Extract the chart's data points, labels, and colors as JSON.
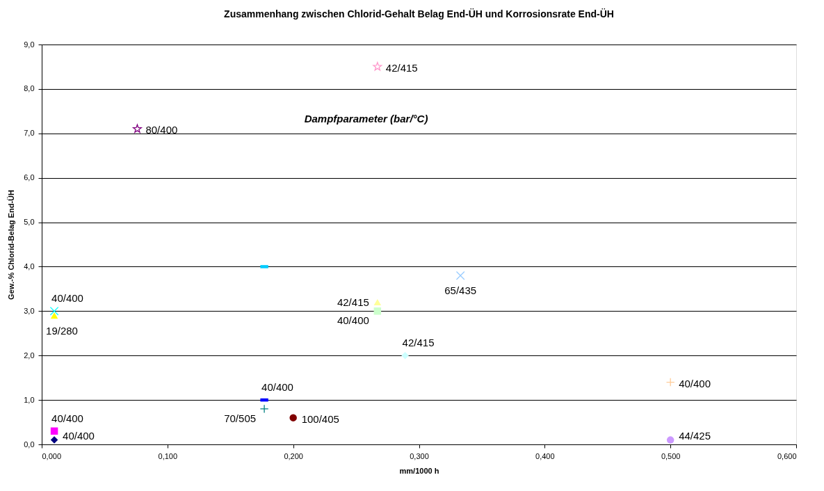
{
  "chart_data": {
    "type": "scatter",
    "title": "Zusammenhang zwischen Chlorid-Gehalt Belag End-ÜH und Korrosionsrate End-ÜH",
    "xlabel": "mm/1000 h",
    "ylabel": "Gew.-% Chlorid-Belag End-ÜH",
    "annotations": [
      "Dampfparameter (bar/°C)"
    ],
    "xlim": [
      0,
      0.6
    ],
    "ylim": [
      0,
      9
    ],
    "grid": "y",
    "xticks": [
      {
        "value": 0,
        "label": "0,000"
      },
      {
        "value": 0.1,
        "label": "0,100"
      },
      {
        "value": 0.2,
        "label": "0,200"
      },
      {
        "value": 0.3,
        "label": "0,300"
      },
      {
        "value": 0.4,
        "label": "0,400"
      },
      {
        "value": 0.5,
        "label": "0,500"
      },
      {
        "value": 0.6,
        "label": "0,600"
      }
    ],
    "yticks": [
      {
        "value": 0,
        "label": "0,0"
      },
      {
        "value": 1,
        "label": "1,0"
      },
      {
        "value": 2,
        "label": "2,0"
      },
      {
        "value": 3,
        "label": "3,0"
      },
      {
        "value": 4,
        "label": "4,0"
      },
      {
        "value": 5,
        "label": "5,0"
      },
      {
        "value": 6,
        "label": "6,0"
      },
      {
        "value": 7,
        "label": "7,0"
      },
      {
        "value": 8,
        "label": "8,0"
      },
      {
        "value": 9,
        "label": "9,0"
      }
    ],
    "series": [
      {
        "name": "40/400",
        "color": "#000080",
        "marker": "diamond",
        "x": [
          0.01
        ],
        "values": [
          0.1
        ]
      },
      {
        "name": "40/400",
        "color": "#ff00ff",
        "marker": "square",
        "x": [
          0.01
        ],
        "values": [
          0.3
        ]
      },
      {
        "name": "19/280",
        "color": "#ffff00",
        "marker": "triangle",
        "x": [
          0.01
        ],
        "values": [
          2.9
        ]
      },
      {
        "name": "40/400",
        "color": "#00ffff",
        "marker": "cross",
        "x": [
          0.01
        ],
        "values": [
          3.0
        ]
      },
      {
        "name": "80/400",
        "color": "#800080",
        "marker": "star",
        "x": [
          0.076
        ],
        "values": [
          7.1
        ]
      },
      {
        "color": "#00ccff",
        "x": [
          0.177
        ],
        "values": [
          4.0
        ]
      },
      {
        "name": "40/400",
        "color": "#0000ff",
        "x": [
          0.177
        ],
        "values": [
          1.0
        ]
      },
      {
        "name": "70/505",
        "color": "#008080",
        "marker": "plus",
        "x": [
          0.177
        ],
        "values": [
          0.8
        ]
      },
      {
        "name": "100/405",
        "color": "#800000",
        "marker": "circle",
        "x": [
          0.2
        ],
        "values": [
          0.6
        ]
      },
      {
        "name": "42/415",
        "color": "#ff99cc",
        "marker": "star",
        "x": [
          0.267
        ],
        "values": [
          8.5
        ]
      },
      {
        "name": "42/415",
        "color": "#ffff99",
        "marker": "triangle",
        "x": [
          0.267
        ],
        "values": [
          3.2
        ]
      },
      {
        "name": "40/400",
        "color": "#ccffcc",
        "marker": "square",
        "x": [
          0.267
        ],
        "values": [
          3.0
        ]
      },
      {
        "name": "42/415",
        "color": "#ccffff",
        "marker": "diamond",
        "x": [
          0.289
        ],
        "values": [
          2.0
        ]
      },
      {
        "name": "65/435",
        "color": "#99ccff",
        "marker": "cross",
        "x": [
          0.333
        ],
        "values": [
          3.8
        ]
      },
      {
        "name": "40/400",
        "color": "#ffcc99",
        "marker": "plus",
        "x": [
          0.5
        ],
        "values": [
          1.4
        ]
      },
      {
        "name": "44/425",
        "color": "#cc99ff",
        "marker": "circle",
        "x": [
          0.5
        ],
        "values": [
          0.1
        ]
      }
    ]
  }
}
